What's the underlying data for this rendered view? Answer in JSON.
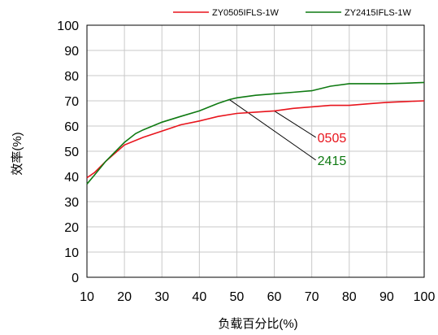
{
  "chart_data": {
    "type": "line",
    "xlabel": "负载百分比(%)",
    "ylabel": "效率(%)",
    "xlim": [
      10,
      100
    ],
    "ylim": [
      0,
      100
    ],
    "x_ticks": [
      10,
      20,
      30,
      40,
      50,
      60,
      70,
      80,
      90,
      100
    ],
    "y_ticks": [
      0,
      10,
      20,
      30,
      40,
      50,
      60,
      70,
      80,
      90,
      100
    ],
    "grid": true,
    "legend_position": "top-right",
    "series": [
      {
        "name": "ZY0505IFLS-1W",
        "color": "#e8141c",
        "points": [
          [
            10,
            39.5
          ],
          [
            12,
            41.5
          ],
          [
            15,
            46
          ],
          [
            20,
            52.5
          ],
          [
            25,
            55.5
          ],
          [
            30,
            58
          ],
          [
            35,
            60.5
          ],
          [
            40,
            62
          ],
          [
            45,
            63.8
          ],
          [
            50,
            65
          ],
          [
            55,
            65.5
          ],
          [
            60,
            66
          ],
          [
            65,
            67
          ],
          [
            70,
            67.6
          ],
          [
            75,
            68.2
          ],
          [
            80,
            68.2
          ],
          [
            85,
            68.8
          ],
          [
            90,
            69.4
          ],
          [
            95,
            69.7
          ],
          [
            100,
            70
          ]
        ]
      },
      {
        "name": "ZY2415IFLS-1W",
        "color": "#0f7a12",
        "points": [
          [
            10,
            37
          ],
          [
            12,
            40.5
          ],
          [
            15,
            46
          ],
          [
            18,
            50.5
          ],
          [
            20,
            53.5
          ],
          [
            23,
            57
          ],
          [
            25,
            58.5
          ],
          [
            30,
            61.5
          ],
          [
            35,
            63.8
          ],
          [
            40,
            66
          ],
          [
            45,
            69
          ],
          [
            48,
            70.5
          ],
          [
            50,
            71.2
          ],
          [
            55,
            72.2
          ],
          [
            60,
            72.8
          ],
          [
            65,
            73.4
          ],
          [
            70,
            74
          ],
          [
            75,
            75.8
          ],
          [
            80,
            76.8
          ],
          [
            85,
            76.8
          ],
          [
            90,
            76.8
          ],
          [
            95,
            77
          ],
          [
            100,
            77.3
          ]
        ]
      }
    ],
    "annotations": [
      {
        "text": "0505",
        "color": "#e8141c",
        "target": [
          60,
          66
        ],
        "label_at": [
          70,
          55.5
        ]
      },
      {
        "text": "2415",
        "color": "#0f7a12",
        "target": [
          48,
          70.5
        ],
        "label_at": [
          70,
          46.5
        ]
      }
    ]
  }
}
